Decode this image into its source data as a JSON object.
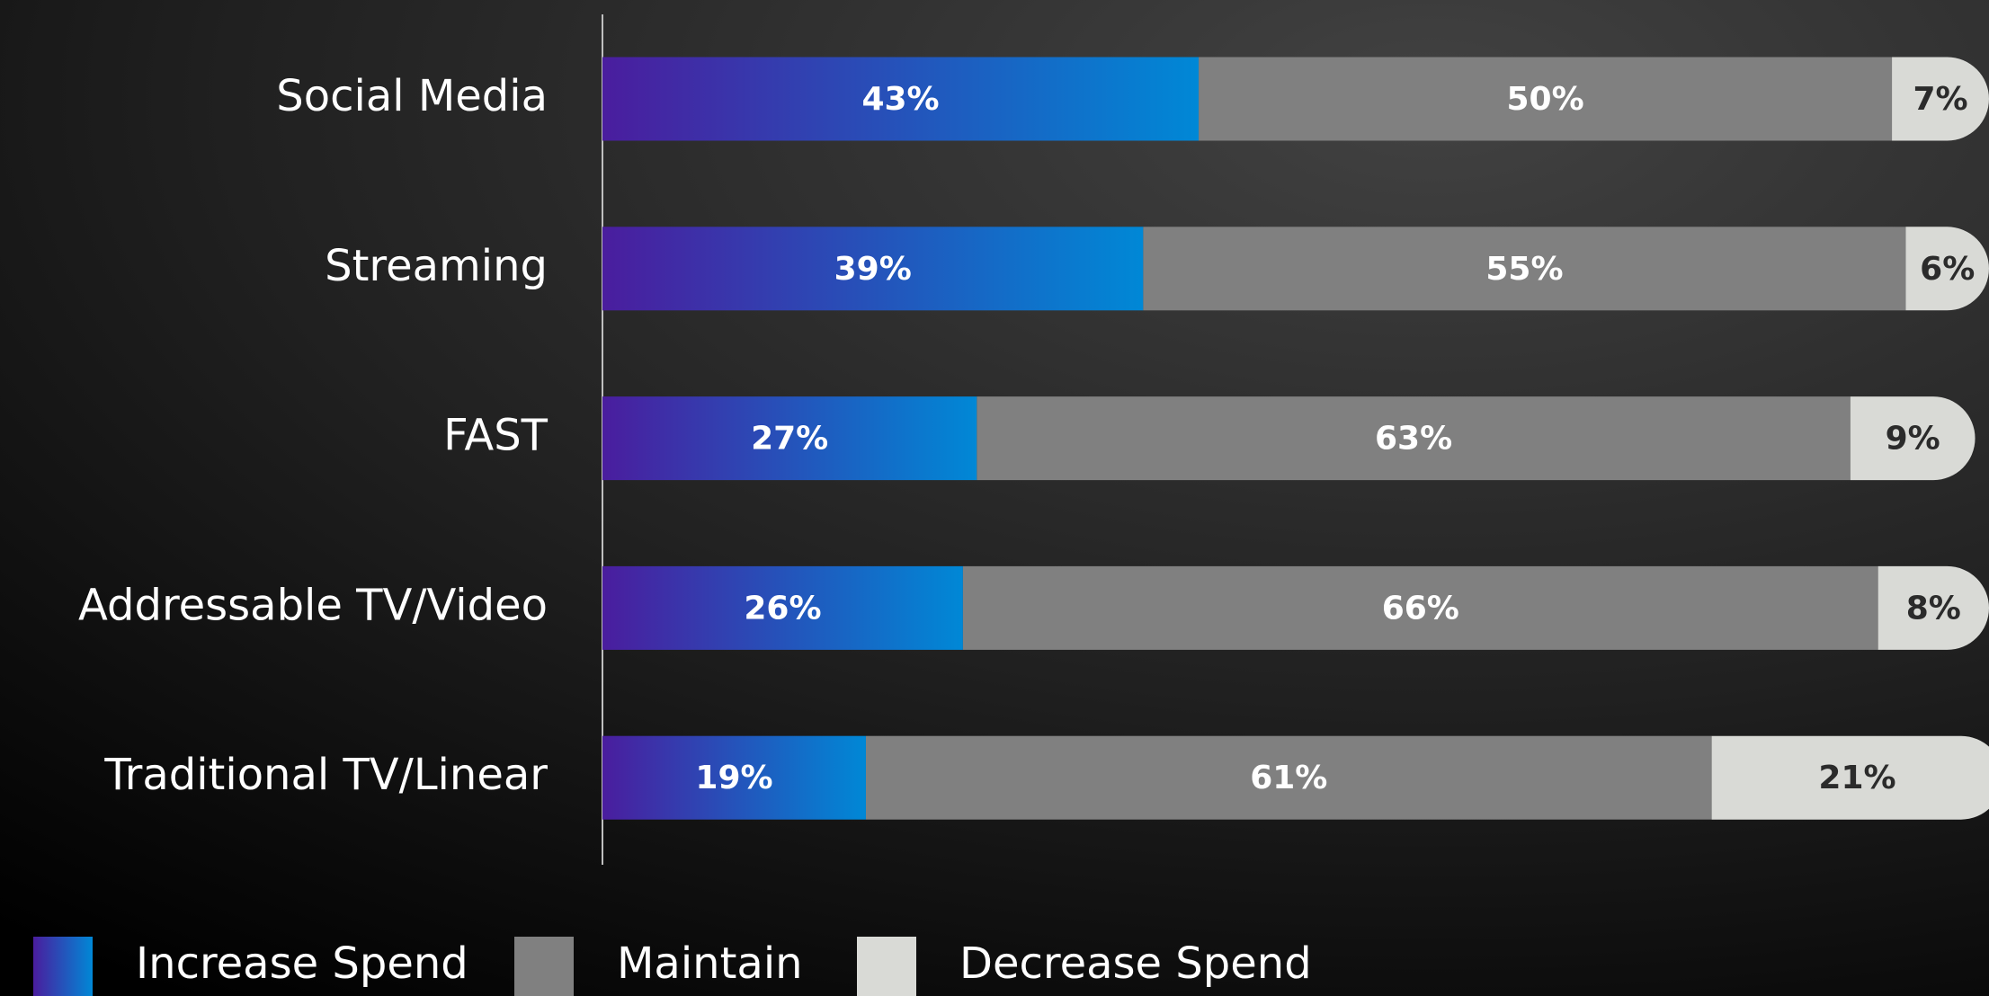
{
  "chart_data": {
    "type": "stacked-bar-horizontal",
    "categories": [
      "Social Media",
      "Streaming",
      "FAST",
      "Addressable TV/Video",
      "Traditional TV/Linear"
    ],
    "series": [
      {
        "name": "Increase Spend",
        "color": "#0088d6",
        "values": [
          43,
          39,
          27,
          26,
          19
        ],
        "value_labels": [
          "43%",
          "39%",
          "27%",
          "26%",
          "19%"
        ]
      },
      {
        "name": "Maintain",
        "color": "#808080",
        "values": [
          50,
          55,
          63,
          66,
          61
        ],
        "value_labels": [
          "50%",
          "55%",
          "63%",
          "66%",
          "61%"
        ]
      },
      {
        "name": "Decrease Spend",
        "color": "#d9dad6",
        "values": [
          7,
          6,
          9,
          8,
          21
        ],
        "value_labels": [
          "7%",
          "6%",
          "9%",
          "8%",
          "21%"
        ]
      }
    ],
    "legend": "bottom-left"
  }
}
